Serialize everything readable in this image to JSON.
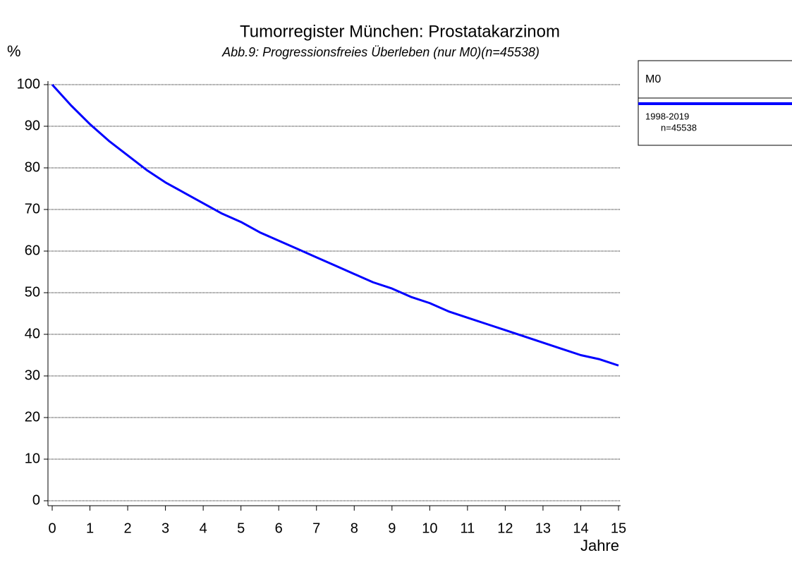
{
  "chart_data": {
    "type": "line",
    "title": "Tumorregister München: Prostatakarzinom",
    "subtitle": "Abb.9: Progressionsfreies Überleben (nur M0)(n=45538)",
    "y_label": "%",
    "x_label": "Jahre",
    "legend_title": "M0",
    "legend_note": "n=45538",
    "x": [
      0,
      0.5,
      1,
      1.5,
      2,
      2.5,
      3,
      3.5,
      4,
      4.5,
      5,
      5.5,
      6,
      6.5,
      7,
      7.5,
      8,
      8.5,
      9,
      9.5,
      10,
      10.5,
      11,
      11.5,
      12,
      12.5,
      13,
      13.5,
      14,
      14.5,
      15
    ],
    "series": [
      {
        "name": "1998-2019",
        "color": "#0000ff",
        "values": [
          100,
          95,
          90.5,
          86.5,
          83,
          79.5,
          76.5,
          74,
          71.5,
          69,
          67,
          64.5,
          62.5,
          60.5,
          58.5,
          56.5,
          54.5,
          52.5,
          51,
          49,
          47.5,
          45.5,
          44,
          42.5,
          41,
          39.5,
          38,
          36.5,
          35,
          34,
          32.5
        ]
      }
    ],
    "xlim": [
      0,
      15
    ],
    "xticks": [
      0,
      1,
      2,
      3,
      4,
      5,
      6,
      7,
      8,
      9,
      10,
      11,
      12,
      13,
      14,
      15
    ],
    "ylim": [
      0,
      100
    ],
    "yticks": [
      0,
      10,
      20,
      30,
      40,
      50,
      60,
      70,
      80,
      90,
      100
    ],
    "grid": true
  }
}
